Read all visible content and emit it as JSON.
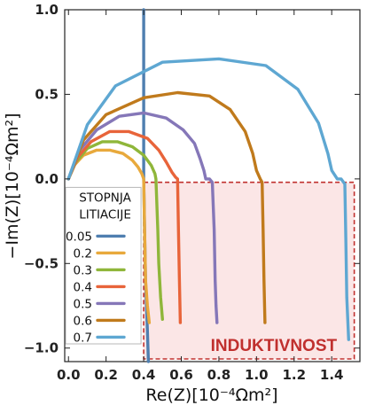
{
  "chart_data": {
    "type": "line",
    "xlabel": "Re(Z)[10⁻⁴Ωm²]",
    "ylabel": "−Im(Z)[10⁻⁴Ωm²]",
    "xlim": [
      -0.02,
      1.55
    ],
    "ylim": [
      -1.08,
      1.0
    ],
    "xticks": [
      0.0,
      0.2,
      0.4,
      0.6,
      0.8,
      1.0,
      1.2,
      1.4
    ],
    "xtick_labels": [
      "0.0",
      "0.2",
      "0.4",
      "0.6",
      "0.8",
      "1.0",
      "1.2",
      "1.4"
    ],
    "yticks": [
      1.0,
      0.5,
      0.0,
      -0.5,
      -1.0
    ],
    "ytick_labels": [
      "1.0",
      "0.5",
      "0.0",
      "−0.5",
      "−1.0"
    ],
    "grid": false,
    "legend": {
      "title_lines": [
        "STOPNJA",
        "LITIACIJE"
      ],
      "placement": "lower-left"
    },
    "annotation": {
      "text": "INDUKTIVNOST",
      "region_x": [
        0.4,
        1.52
      ],
      "region_y": [
        -1.08,
        -0.02
      ],
      "fill": "#fbe6e6",
      "border": "#c0302e"
    },
    "series": [
      {
        "name": "0.05",
        "color": "#4f7fb0",
        "x": [
          0.4,
          0.4,
          0.4,
          0.4,
          0.4,
          0.405,
          0.41,
          0.42,
          0.425
        ],
        "y": [
          1.0,
          0.6,
          0.3,
          0.1,
          0.0,
          -0.3,
          -0.6,
          -0.9,
          -1.08
        ]
      },
      {
        "name": "0.2",
        "color": "#e8a93c",
        "x": [
          0.0,
          0.03,
          0.08,
          0.15,
          0.22,
          0.29,
          0.34,
          0.37,
          0.39,
          0.4,
          0.405,
          0.41,
          0.42,
          0.43
        ],
        "y": [
          0.0,
          0.08,
          0.14,
          0.17,
          0.17,
          0.15,
          0.11,
          0.07,
          0.03,
          0.0,
          -0.3,
          -0.6,
          -0.75,
          -0.85
        ]
      },
      {
        "name": "0.3",
        "color": "#8fb63a",
        "x": [
          0.0,
          0.04,
          0.1,
          0.18,
          0.26,
          0.34,
          0.4,
          0.44,
          0.46,
          0.465,
          0.475,
          0.48,
          0.49,
          0.5
        ],
        "y": [
          0.0,
          0.1,
          0.18,
          0.22,
          0.22,
          0.19,
          0.14,
          0.08,
          0.03,
          0.0,
          -0.3,
          -0.5,
          -0.7,
          -0.83
        ]
      },
      {
        "name": "0.4",
        "color": "#e8643a",
        "x": [
          0.0,
          0.05,
          0.12,
          0.22,
          0.32,
          0.42,
          0.48,
          0.52,
          0.55,
          0.57,
          0.58,
          0.585,
          0.59,
          0.595
        ],
        "y": [
          0.0,
          0.13,
          0.22,
          0.28,
          0.28,
          0.24,
          0.17,
          0.1,
          0.04,
          0.01,
          0.0,
          -0.3,
          -0.6,
          -0.85
        ]
      },
      {
        "name": "0.5",
        "color": "#8577b8",
        "x": [
          0.0,
          0.06,
          0.15,
          0.27,
          0.4,
          0.52,
          0.61,
          0.67,
          0.7,
          0.72,
          0.73,
          0.75,
          0.765,
          0.775,
          0.78,
          0.785,
          0.79
        ],
        "y": [
          0.0,
          0.17,
          0.29,
          0.37,
          0.39,
          0.36,
          0.29,
          0.21,
          0.12,
          0.05,
          0.0,
          0.0,
          -0.02,
          -0.3,
          -0.6,
          -0.75,
          -0.85
        ]
      },
      {
        "name": "0.6",
        "color": "#c07a1c",
        "x": [
          0.0,
          0.08,
          0.2,
          0.4,
          0.58,
          0.75,
          0.86,
          0.94,
          0.98,
          1.0,
          1.02,
          1.03,
          1.035,
          1.04,
          1.045
        ],
        "y": [
          0.0,
          0.23,
          0.38,
          0.48,
          0.51,
          0.49,
          0.41,
          0.28,
          0.15,
          0.05,
          0.0,
          -0.02,
          -0.3,
          -0.6,
          -0.85
        ]
      },
      {
        "name": "0.7",
        "color": "#5ea7d2",
        "x": [
          0.0,
          0.1,
          0.25,
          0.5,
          0.8,
          1.05,
          1.22,
          1.33,
          1.38,
          1.4,
          1.43,
          1.45,
          1.47,
          1.475,
          1.48,
          1.49
        ],
        "y": [
          0.0,
          0.32,
          0.55,
          0.69,
          0.71,
          0.67,
          0.53,
          0.33,
          0.15,
          0.05,
          0.0,
          0.0,
          -0.03,
          -0.35,
          -0.7,
          -0.95
        ]
      }
    ]
  }
}
